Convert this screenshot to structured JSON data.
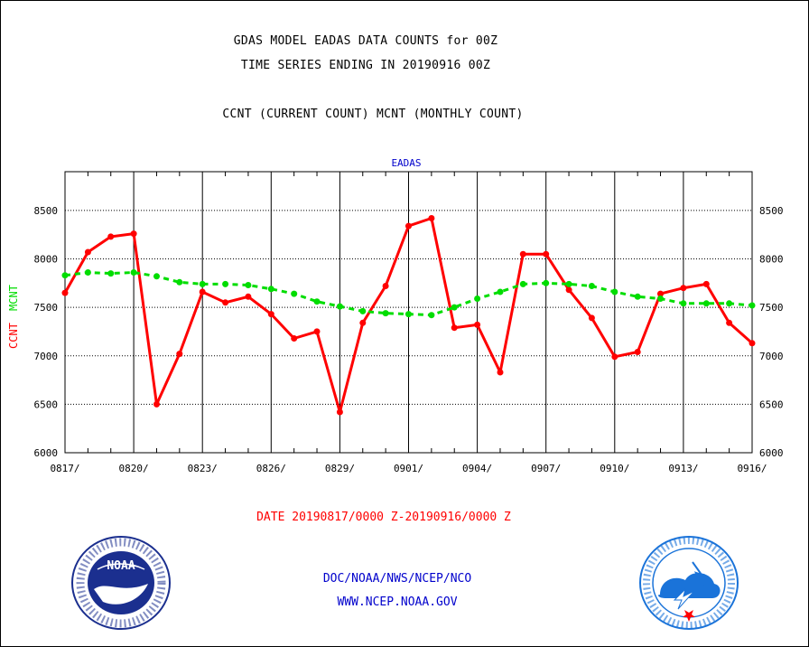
{
  "header": {
    "title_line1": "GDAS MODEL EADAS DATA COUNTS for 00Z",
    "title_line2": "TIME SERIES ENDING IN 20190916 00Z",
    "title_line3": "CCNT (CURRENT COUNT) MCNT (MONTHLY COUNT)"
  },
  "chart_data": {
    "type": "line",
    "title": "EADAS",
    "ylabel_primary": "CCNT",
    "ylabel_secondary": "MCNT",
    "xlabel": "DATE 20190817/0000 Z-20190916/0000 Z",
    "ylim": [
      6000,
      8900
    ],
    "yticks": [
      6000,
      6500,
      7000,
      7500,
      8000,
      8500
    ],
    "xtick_labels": [
      "0817/",
      "0820/",
      "0823/",
      "0826/",
      "0829/",
      "0901/",
      "0904/",
      "0907/",
      "0910/",
      "0913/",
      "0916/"
    ],
    "grid": true,
    "x": [
      "0817",
      "0818",
      "0819",
      "0820",
      "0821",
      "0822",
      "0823",
      "0824",
      "0825",
      "0826",
      "0827",
      "0828",
      "0829",
      "0830",
      "0831",
      "0901",
      "0902",
      "0903",
      "0904",
      "0905",
      "0906",
      "0907",
      "0908",
      "0909",
      "0910",
      "0911",
      "0912",
      "0913",
      "0914",
      "0915",
      "0916"
    ],
    "series": [
      {
        "name": "CCNT",
        "color": "#ff0000",
        "style": "solid",
        "values": [
          7650,
          8070,
          8230,
          8260,
          6500,
          7020,
          7660,
          7550,
          7610,
          7430,
          7180,
          7250,
          6420,
          7340,
          7720,
          8340,
          8420,
          7290,
          7320,
          6830,
          8050,
          8050,
          7680,
          7390,
          6990,
          7040,
          7640,
          7700,
          7740,
          7340,
          7130
        ]
      },
      {
        "name": "MCNT",
        "color": "#00dd00",
        "style": "dashed",
        "values": [
          7830,
          7860,
          7850,
          7860,
          7820,
          7760,
          7740,
          7740,
          7730,
          7690,
          7640,
          7560,
          7510,
          7460,
          7440,
          7430,
          7420,
          7500,
          7590,
          7660,
          7740,
          7750,
          7740,
          7720,
          7660,
          7610,
          7590,
          7540,
          7540,
          7540,
          7520
        ]
      }
    ]
  },
  "footer": {
    "date_range": "DATE 20190817/0000 Z-20190916/0000 Z",
    "org": "DOC/NOAA/NWS/NCEP/NCO",
    "url": "WWW.NCEP.NOAA.GOV"
  },
  "logos": {
    "left": "noaa-logo",
    "right": "national-weather-service-logo"
  },
  "colors": {
    "ccnt": "#ff0000",
    "mcnt": "#00dd00",
    "title_blue": "#0000cc",
    "nws_blue": "#1a73d9",
    "noaa_navy": "#1b2f8f"
  }
}
